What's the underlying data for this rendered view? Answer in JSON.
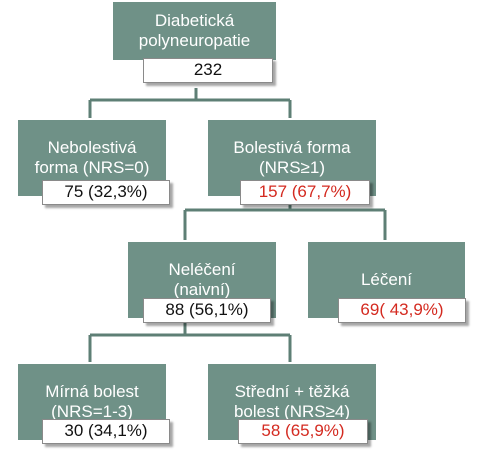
{
  "tree": {
    "root": {
      "lines": [
        "Diabetická",
        "polyneuropatie"
      ],
      "value": "232"
    },
    "nonpainful": {
      "lines": [
        "Nebolestivá",
        "forma (NRS=0)"
      ],
      "value": "75 (32,3%)"
    },
    "painful": {
      "lines": [
        "Bolestivá forma",
        "(NRS≥1)"
      ],
      "value": "157 (67,7%)"
    },
    "untreated": {
      "lines": [
        "Neléčení",
        "(naivní)"
      ],
      "value": "88 (56,1%)"
    },
    "treated": {
      "lines": [
        "Léčení"
      ],
      "value": "69( 43,9%)"
    },
    "mild": {
      "lines": [
        "Mírná bolest",
        "(NRS=1-3)"
      ],
      "value": "30 (34,1%)"
    },
    "moderate_severe": {
      "lines": [
        "Střední + těžká",
        "bolest (NRS≥4)"
      ],
      "value": "58 (65,9%)"
    }
  },
  "colors": {
    "node_fill": "#6f9187",
    "connector": "#5e7f75",
    "highlight_value": "#d42a20",
    "normal_value": "#111111"
  }
}
